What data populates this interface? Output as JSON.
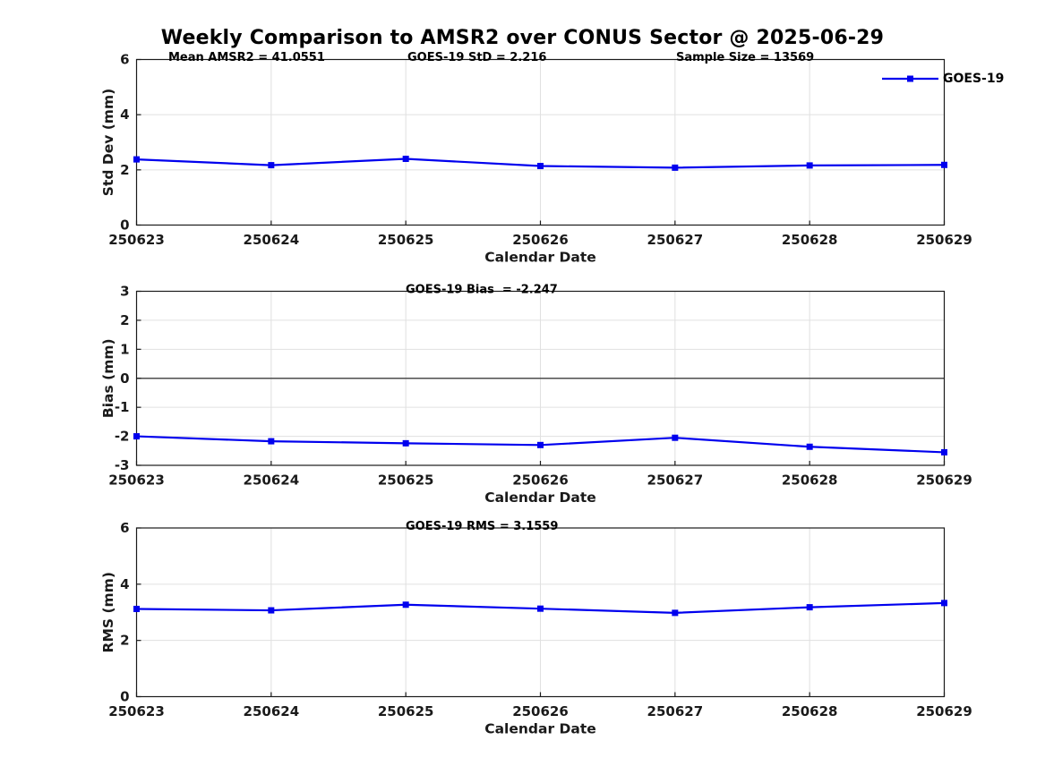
{
  "title": "Weekly Comparison to AMSR2 over CONUS Sector @ 2025-06-29",
  "accent_color": "#0000EE",
  "grid_color": "#e0e0e0",
  "axis_color": "#1a1a1a",
  "zero_line_color": "#4d4d4d",
  "chart_data": [
    {
      "type": "line",
      "name": "std-dev",
      "categories": [
        "250623",
        "250624",
        "250625",
        "250626",
        "250627",
        "250628",
        "250629"
      ],
      "series": [
        {
          "name": "GOES-19",
          "values": [
            2.38,
            2.17,
            2.4,
            2.14,
            2.08,
            2.16,
            2.18
          ]
        }
      ],
      "xlabel": "Calendar Date",
      "ylabel": "Std Dev (mm)",
      "ylim": [
        0,
        6
      ],
      "yticks": [
        0,
        2,
        4,
        6
      ],
      "grid": true,
      "annotations": [
        "Mean AMSR2 = 41.0551",
        "GOES-19 StD = 2.216",
        "Sample Size = 13569"
      ],
      "legend": {
        "label": "GOES-19",
        "position": "top-right-outside"
      }
    },
    {
      "type": "line",
      "name": "bias",
      "categories": [
        "250623",
        "250624",
        "250625",
        "250626",
        "250627",
        "250628",
        "250629"
      ],
      "series": [
        {
          "name": "GOES-19",
          "values": [
            -2.0,
            -2.17,
            -2.24,
            -2.3,
            -2.05,
            -2.36,
            -2.55
          ]
        }
      ],
      "xlabel": "Calendar Date",
      "ylabel": "Bias (mm)",
      "ylim": [
        -3,
        3
      ],
      "yticks": [
        -3,
        -2,
        -1,
        0,
        1,
        2,
        3
      ],
      "grid": true,
      "zero_line": true,
      "annotations": [
        "GOES-19 Bias  = -2.247"
      ]
    },
    {
      "type": "line",
      "name": "rms",
      "categories": [
        "250623",
        "250624",
        "250625",
        "250626",
        "250627",
        "250628",
        "250629"
      ],
      "series": [
        {
          "name": "GOES-19",
          "values": [
            3.12,
            3.07,
            3.27,
            3.13,
            2.98,
            3.18,
            3.33
          ]
        }
      ],
      "xlabel": "Calendar Date",
      "ylabel": "RMS (mm)",
      "ylim": [
        0,
        6
      ],
      "yticks": [
        0,
        2,
        4,
        6
      ],
      "grid": true,
      "annotations": [
        "GOES-19 RMS = 3.1559"
      ]
    }
  ]
}
